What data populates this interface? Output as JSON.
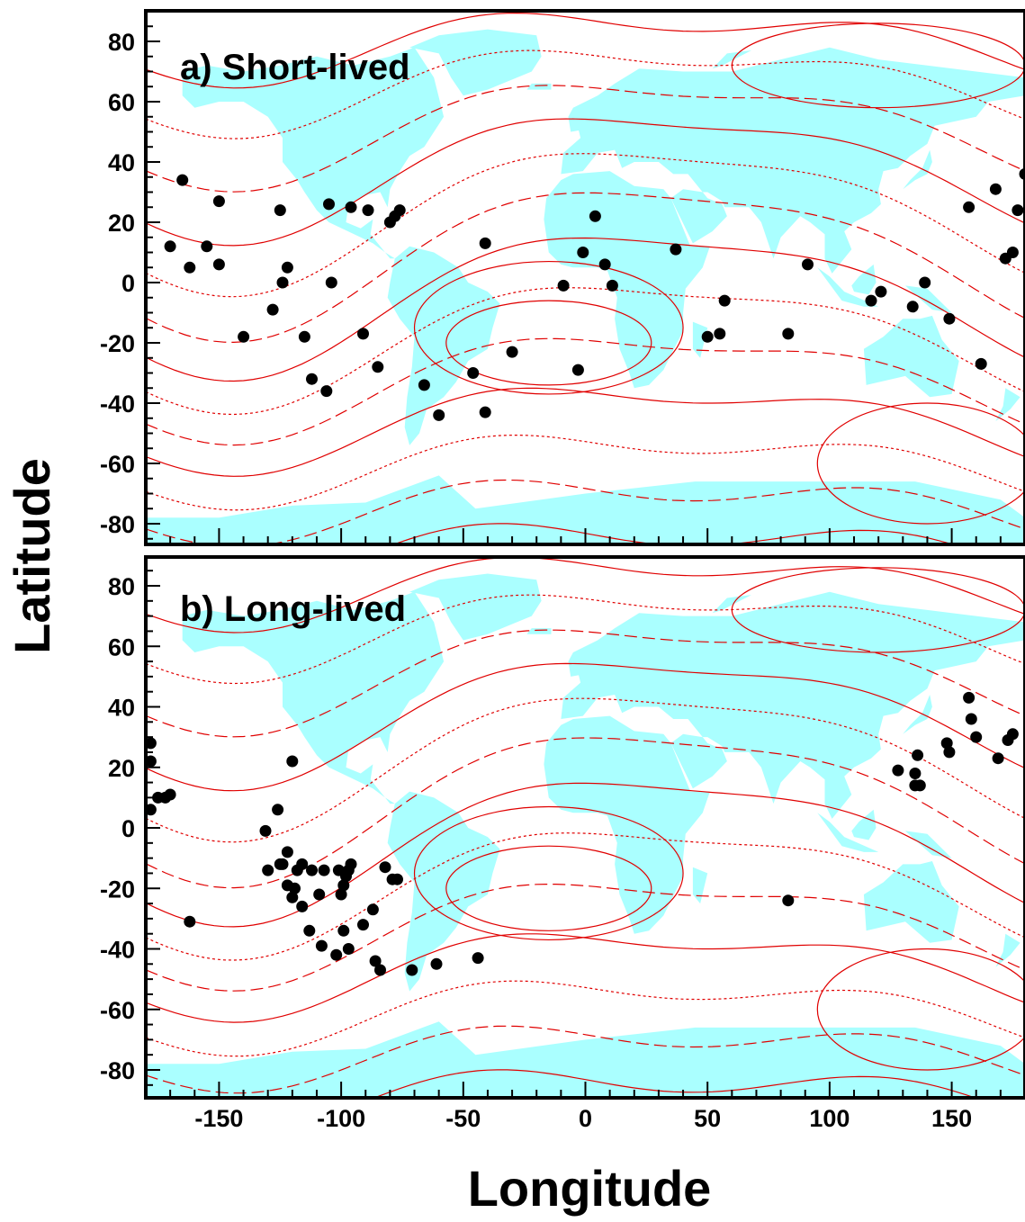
{
  "chart_data": [
    {
      "type": "scatter",
      "title": "a) Short-lived",
      "xlabel": "Longitude",
      "ylabel": "Latitude",
      "xlim": [
        -180,
        180
      ],
      "ylim": [
        -90,
        90
      ],
      "xticks": [
        -150,
        -100,
        -50,
        0,
        50,
        100,
        150
      ],
      "yticks": [
        80,
        60,
        40,
        20,
        0,
        -20,
        -40,
        -60,
        -80
      ],
      "background": "world map (continents) with contour lines",
      "points": [
        [
          -165,
          34
        ],
        [
          -170,
          12
        ],
        [
          -162,
          5
        ],
        [
          -155,
          12
        ],
        [
          -150,
          27
        ],
        [
          -150,
          6
        ],
        [
          -125,
          24
        ],
        [
          -122,
          5
        ],
        [
          -124,
          0
        ],
        [
          -128,
          -9
        ],
        [
          -140,
          -18
        ],
        [
          -115,
          -18
        ],
        [
          -112,
          -32
        ],
        [
          -106,
          -36
        ],
        [
          -105,
          26
        ],
        [
          -104,
          0
        ],
        [
          -96,
          25
        ],
        [
          -89,
          24
        ],
        [
          -80,
          20
        ],
        [
          -78,
          22
        ],
        [
          -76,
          24
        ],
        [
          -91,
          -17
        ],
        [
          -85,
          -28
        ],
        [
          -66,
          -34
        ],
        [
          -60,
          -44
        ],
        [
          -46,
          -30
        ],
        [
          -41,
          -43
        ],
        [
          -30,
          -23
        ],
        [
          -41,
          13
        ],
        [
          -9,
          -1
        ],
        [
          -3,
          -29
        ],
        [
          -1,
          10
        ],
        [
          4,
          22
        ],
        [
          8,
          6
        ],
        [
          11,
          -1
        ],
        [
          37,
          11
        ],
        [
          50,
          -18
        ],
        [
          55,
          -17
        ],
        [
          57,
          -6
        ],
        [
          83,
          -17
        ],
        [
          91,
          6
        ],
        [
          117,
          -6
        ],
        [
          121,
          -3
        ],
        [
          134,
          -8
        ],
        [
          139,
          0
        ],
        [
          149,
          -12
        ],
        [
          162,
          -27
        ],
        [
          157,
          25
        ],
        [
          168,
          31
        ],
        [
          172,
          8
        ],
        [
          175,
          10
        ],
        [
          177,
          24
        ],
        [
          180,
          36
        ]
      ]
    },
    {
      "type": "scatter",
      "title": "b) Long-lived",
      "xlabel": "Longitude",
      "ylabel": "Latitude",
      "xlim": [
        -180,
        180
      ],
      "ylim": [
        -90,
        90
      ],
      "xticks": [
        -150,
        -100,
        -50,
        0,
        50,
        100,
        150
      ],
      "yticks": [
        80,
        60,
        40,
        20,
        0,
        -20,
        -40,
        -60,
        -80
      ],
      "background": "world map (continents) with contour lines",
      "points": [
        [
          -178,
          28
        ],
        [
          -178,
          22
        ],
        [
          -175,
          10
        ],
        [
          -172,
          10
        ],
        [
          -170,
          11
        ],
        [
          -178,
          6
        ],
        [
          -162,
          -31
        ],
        [
          -120,
          22
        ],
        [
          -126,
          6
        ],
        [
          -131,
          -1
        ],
        [
          -130,
          -14
        ],
        [
          -125,
          -12
        ],
        [
          -124,
          -12
        ],
        [
          -122,
          -8
        ],
        [
          -118,
          -14
        ],
        [
          -116,
          -12
        ],
        [
          -112,
          -14
        ],
        [
          -107,
          -14
        ],
        [
          -101,
          -14
        ],
        [
          -97,
          -14
        ],
        [
          -96,
          -12
        ],
        [
          -98,
          -16
        ],
        [
          -99,
          -19
        ],
        [
          -100,
          -22
        ],
        [
          -122,
          -19
        ],
        [
          -119,
          -20
        ],
        [
          -120,
          -23
        ],
        [
          -116,
          -26
        ],
        [
          -109,
          -22
        ],
        [
          -113,
          -34
        ],
        [
          -108,
          -39
        ],
        [
          -102,
          -42
        ],
        [
          -99,
          -34
        ],
        [
          -97,
          -40
        ],
        [
          -91,
          -32
        ],
        [
          -87,
          -27
        ],
        [
          -86,
          -44
        ],
        [
          -84,
          -47
        ],
        [
          -82,
          -13
        ],
        [
          -79,
          -17
        ],
        [
          -77,
          -17
        ],
        [
          -71,
          -47
        ],
        [
          -61,
          -45
        ],
        [
          -44,
          -43
        ],
        [
          83,
          -24
        ],
        [
          128,
          19
        ],
        [
          135,
          14
        ],
        [
          135,
          18
        ],
        [
          136,
          24
        ],
        [
          137,
          14
        ],
        [
          148,
          28
        ],
        [
          149,
          25
        ],
        [
          157,
          43
        ],
        [
          158,
          36
        ],
        [
          160,
          30
        ],
        [
          169,
          23
        ],
        [
          173,
          29
        ],
        [
          175,
          31
        ]
      ]
    }
  ],
  "colors": {
    "land": "#aaffff",
    "contour": "#e00000",
    "points": "#000000",
    "axes": "#000000"
  }
}
